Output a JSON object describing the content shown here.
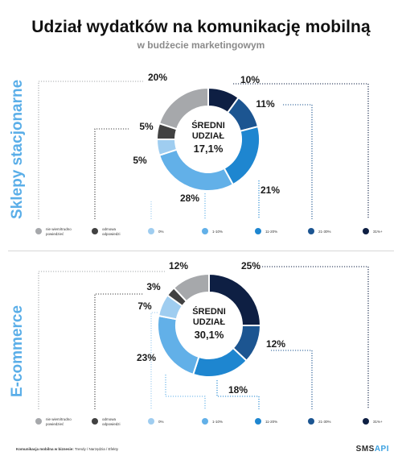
{
  "header": {
    "title": "Udział wydatków na komunikację mobilną",
    "subtitle": "w budżecie marketingowym"
  },
  "footer": {
    "bold": "Komunikacja mobilna w biznesie:",
    "rest": " Trendy / Narzędzia / Efekty"
  },
  "brand": {
    "part1": "SMS",
    "part2": "API"
  },
  "colors": {
    "nie_wiem": "#a6a8ab",
    "odmowa": "#414141",
    "zero": "#9fcdf0",
    "p1_10": "#62b0e8",
    "p11_20": "#1e86d0",
    "p21_30": "#1c5591",
    "p31": "#0e1f43",
    "section_label": "#5aaee8"
  },
  "chart_data": [
    {
      "type": "pie",
      "donut": true,
      "section": "Sklepy stacjonarne",
      "center_line1": "ŚREDNI",
      "center_line2": "UDZIAŁ",
      "center_value": "17,1%",
      "categories": [
        "31%+",
        "21-30%",
        "11-20%",
        "1-10%",
        "0%",
        "odmowa odpowiedzi",
        "nie wiem/trudno powiedzieć"
      ],
      "values": [
        10,
        11,
        21,
        28,
        5,
        5,
        20
      ],
      "labels": [
        "10%",
        "11%",
        "21%",
        "28%",
        "5%",
        "5%",
        "20%"
      ],
      "legend": [
        {
          "line1": "nie wiem/trudno",
          "line2": "powiedzieć"
        },
        {
          "line1": "odmowa",
          "line2": "odpowiedzi"
        },
        {
          "line1": "0%",
          "line2": ""
        },
        {
          "line1": "1-10%",
          "line2": ""
        },
        {
          "line1": "11-20%",
          "line2": ""
        },
        {
          "line1": "21-30%",
          "line2": ""
        },
        {
          "line1": "31%+",
          "line2": ""
        }
      ]
    },
    {
      "type": "pie",
      "donut": true,
      "section": "E-commerce",
      "center_line1": "ŚREDNI",
      "center_line2": "UDZIAŁ",
      "center_value": "30,1%",
      "categories": [
        "31%+",
        "21-30%",
        "11-20%",
        "1-10%",
        "0%",
        "odmowa odpowiedzi",
        "nie wiem/trudno powiedzieć"
      ],
      "values": [
        25,
        12,
        18,
        23,
        7,
        3,
        12
      ],
      "labels": [
        "25%",
        "12%",
        "18%",
        "23%",
        "7%",
        "3%",
        "12%"
      ],
      "legend": [
        {
          "line1": "nie wiem/trudno",
          "line2": "powiedzieć"
        },
        {
          "line1": "odmowa",
          "line2": "odpowiedzi"
        },
        {
          "line1": "0%",
          "line2": ""
        },
        {
          "line1": "1-10%",
          "line2": ""
        },
        {
          "line1": "11-20%",
          "line2": ""
        },
        {
          "line1": "21-30%",
          "line2": ""
        },
        {
          "line1": "31%+",
          "line2": ""
        }
      ]
    }
  ]
}
